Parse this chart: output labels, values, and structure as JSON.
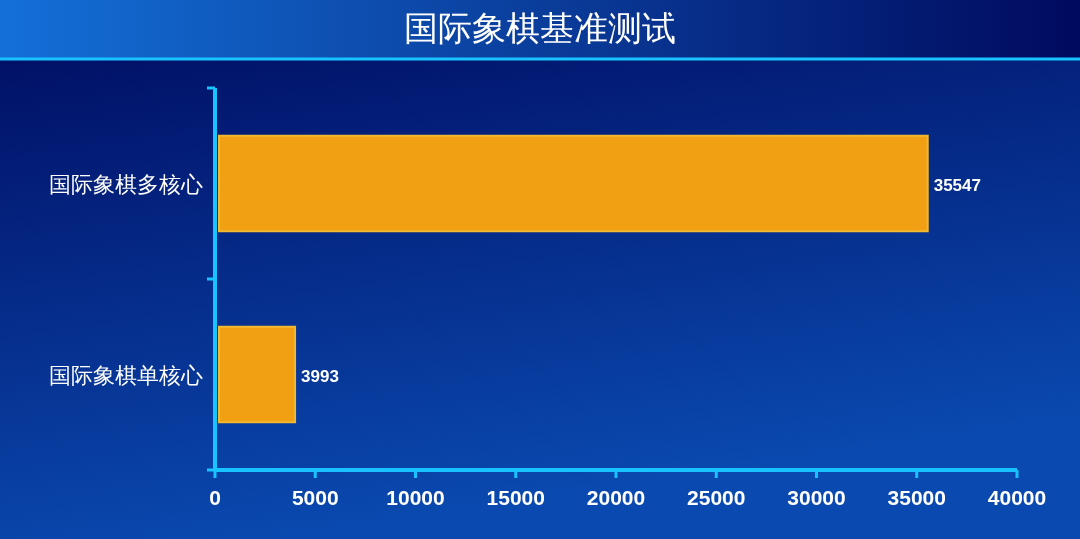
{
  "chart_data": {
    "type": "bar",
    "orientation": "horizontal",
    "title": "国际象棋基准测试",
    "categories": [
      "国际象棋多核心",
      "国际象棋单核心"
    ],
    "values": [
      35547,
      3993
    ],
    "color": "#f0a012",
    "xlim": [
      0,
      40000
    ],
    "xticks": [
      0,
      5000,
      10000,
      15000,
      20000,
      25000,
      30000,
      35000,
      40000
    ],
    "data_labels": true,
    "grid": false
  }
}
